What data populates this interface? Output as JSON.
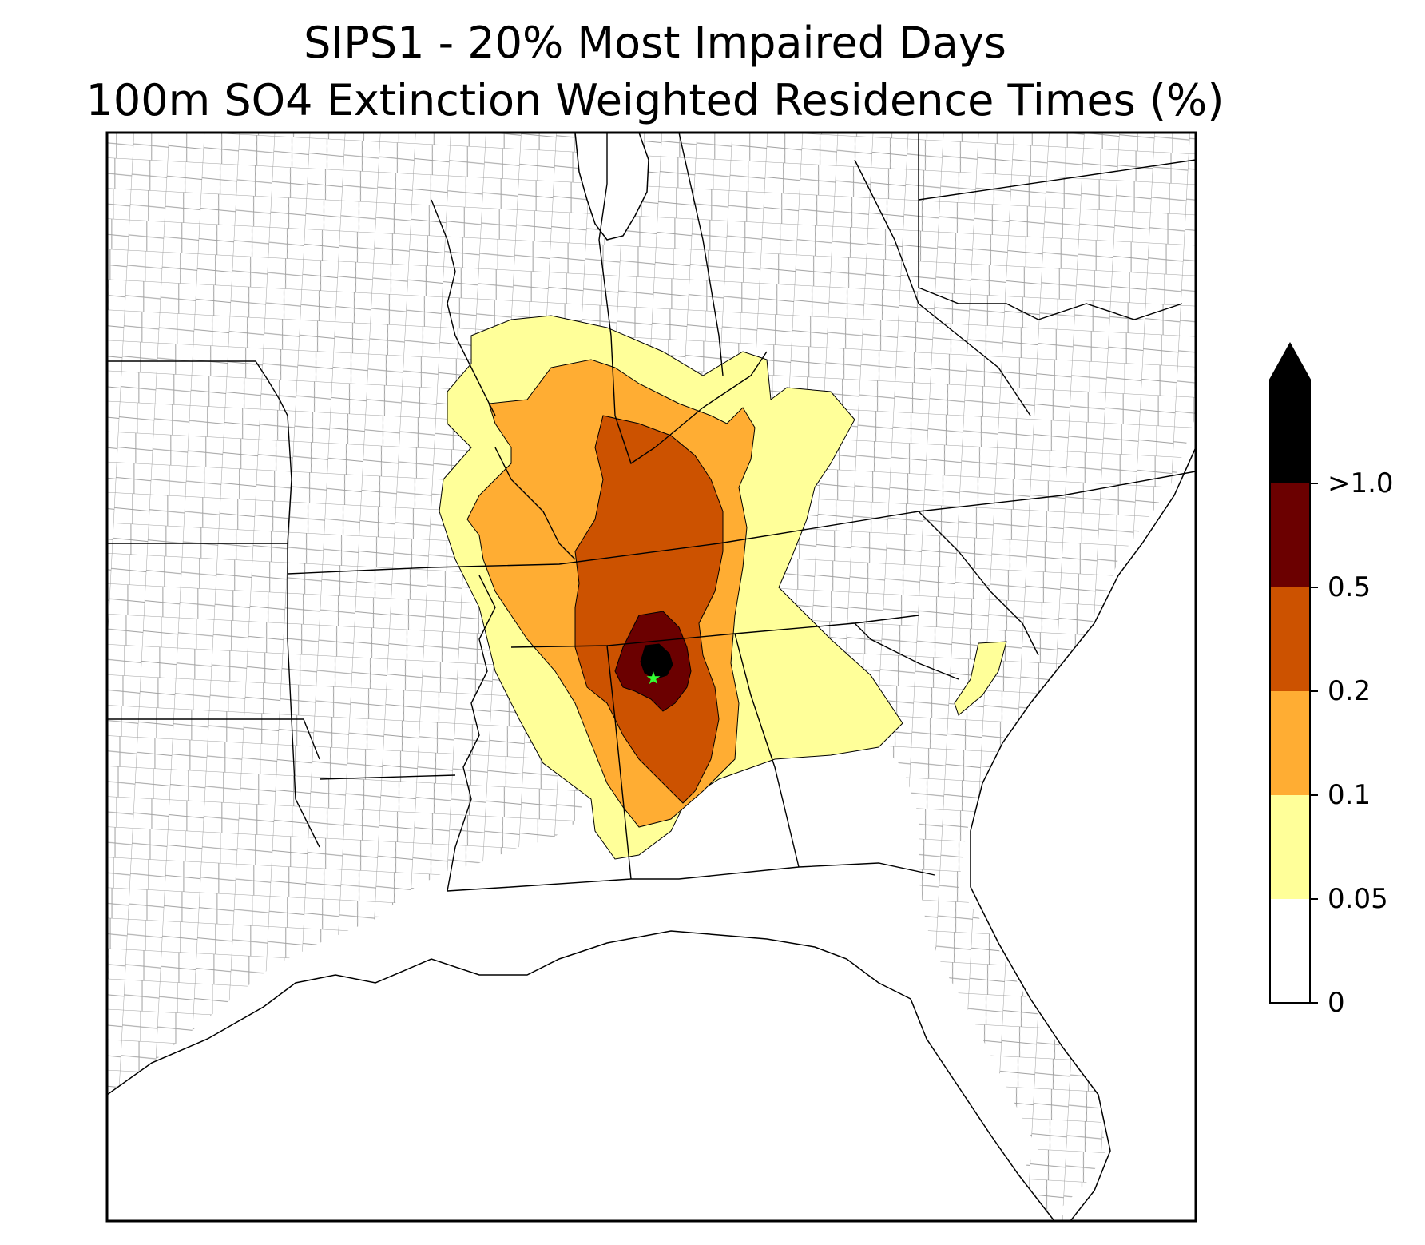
{
  "title": {
    "line1": "SIPS1 - 20% Most Impaired Days",
    "line2": "100m SO4 Extinction Weighted Residence Times (%)"
  },
  "site_marker": {
    "symbol": "star",
    "color": "#33ff33"
  },
  "colorbar": {
    "extend": "max",
    "levels": [
      {
        "label": "0",
        "color": "#ffffff"
      },
      {
        "label": "0.05",
        "color": "#ffff99"
      },
      {
        "label": "0.1",
        "color": "#ffad33"
      },
      {
        "label": "0.2",
        "color": "#cc5200"
      },
      {
        "label": "0.5",
        "color": "#6b0000"
      },
      {
        "label": ">1.0",
        "color": "#000000"
      }
    ]
  },
  "colors": {
    "county_lines": "#a0a0a0",
    "state_lines": "#000000",
    "frame": "#000000"
  }
}
